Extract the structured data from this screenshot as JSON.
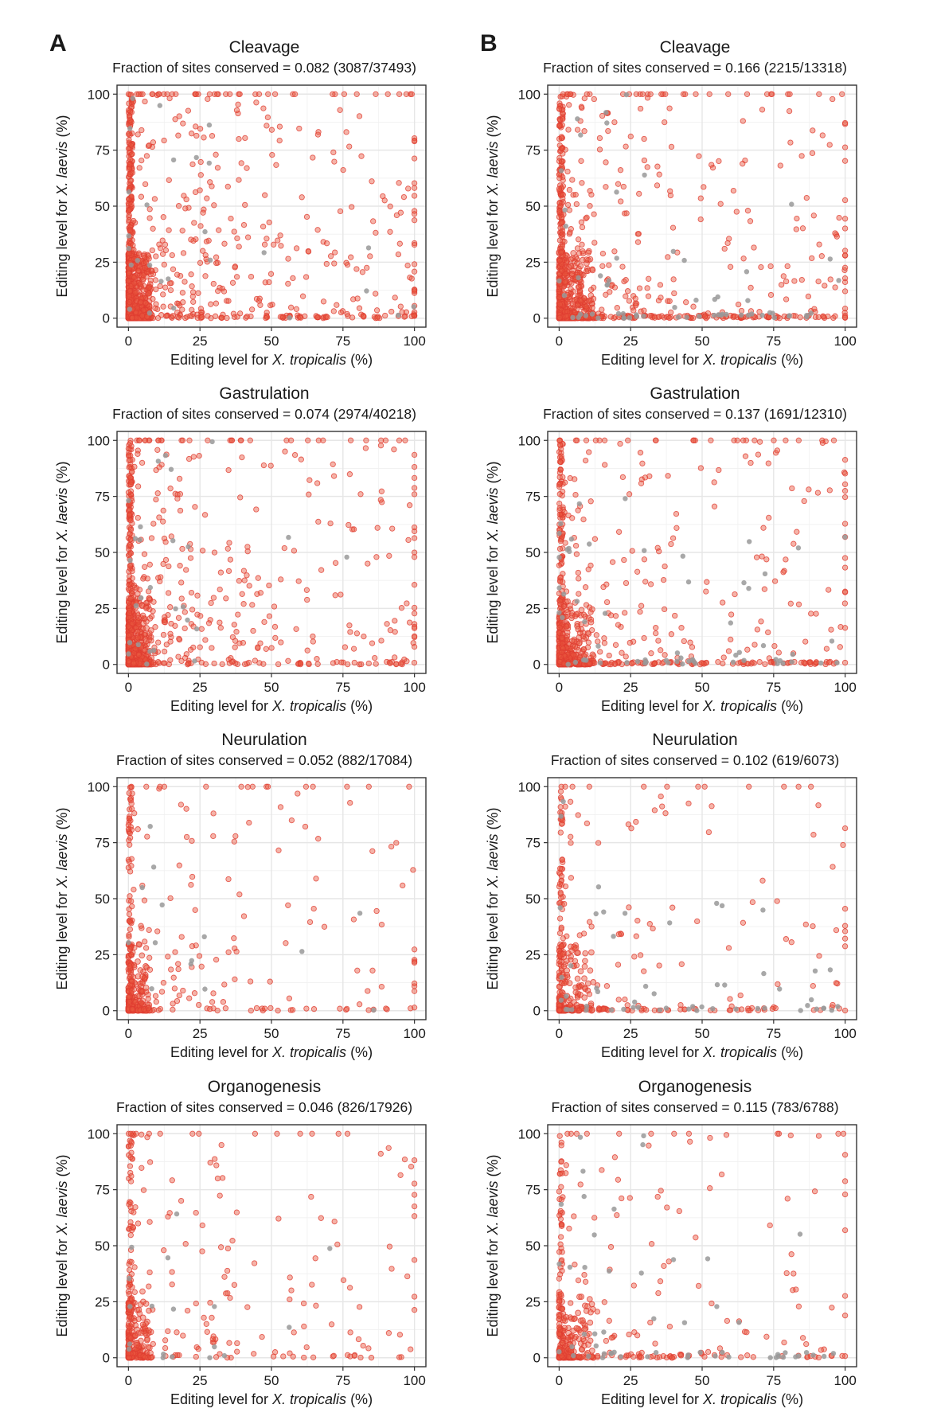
{
  "panels": [
    {
      "letter": "A"
    },
    {
      "letter": "B"
    }
  ],
  "colors": {
    "conserved": "#e8563f",
    "not_conserved": "#999999",
    "dense": "#e03c31",
    "grid": "#e6e6e6",
    "frame": "#333333"
  },
  "chart_data": [
    {
      "id": "A1",
      "panel": "A",
      "type": "scatter",
      "title": "Cleavage",
      "subtitle": "Fraction of sites conserved = 0.082 (3087/37493)",
      "fraction": 0.082,
      "conserved": 3087,
      "total": 37493,
      "xlabel_prefix": "Editing level for ",
      "xlabel_species": "X. tropicalis",
      "xlabel_suffix": " (%)",
      "ylabel_prefix": "Editing level for ",
      "ylabel_species": "X. laevis",
      "ylabel_suffix": " (%)",
      "xlim": [
        0,
        100
      ],
      "ylim": [
        0,
        100
      ],
      "xticks": [
        0,
        25,
        50,
        75,
        100
      ],
      "yticks": [
        0,
        25,
        50,
        75,
        100
      ],
      "grid": true,
      "series": [
        {
          "name": "conserved",
          "density": 1.0,
          "color": "#e8563f"
        },
        {
          "name": "not conserved",
          "density": 0.15,
          "color": "#999999"
        }
      ]
    },
    {
      "id": "B1",
      "panel": "B",
      "type": "scatter",
      "title": "Cleavage",
      "subtitle": "Fraction of sites conserved = 0.166 (2215/13318)",
      "fraction": 0.166,
      "conserved": 2215,
      "total": 13318,
      "xlabel_prefix": "Editing level for ",
      "xlabel_species": "X. tropicalis",
      "xlabel_suffix": " (%)",
      "ylabel_prefix": "Editing level for ",
      "ylabel_species": "X. laevis",
      "ylabel_suffix": " (%)",
      "xlim": [
        0,
        100
      ],
      "ylim": [
        0,
        100
      ],
      "xticks": [
        0,
        25,
        50,
        75,
        100
      ],
      "yticks": [
        0,
        25,
        50,
        75,
        100
      ],
      "grid": true,
      "series": [
        {
          "name": "conserved",
          "density": 0.75,
          "color": "#e8563f"
        },
        {
          "name": "not conserved",
          "density": 0.35,
          "color": "#999999"
        }
      ]
    },
    {
      "id": "A2",
      "panel": "A",
      "type": "scatter",
      "title": "Gastrulation",
      "subtitle": "Fraction of sites conserved = 0.074 (2974/40218)",
      "fraction": 0.074,
      "conserved": 2974,
      "total": 40218,
      "xlabel_prefix": "Editing level for ",
      "xlabel_species": "X. tropicalis",
      "xlabel_suffix": " (%)",
      "ylabel_prefix": "Editing level for ",
      "ylabel_species": "X. laevis",
      "ylabel_suffix": " (%)",
      "xlim": [
        0,
        100
      ],
      "ylim": [
        0,
        100
      ],
      "xticks": [
        0,
        25,
        50,
        75,
        100
      ],
      "yticks": [
        0,
        25,
        50,
        75,
        100
      ],
      "grid": true,
      "series": [
        {
          "name": "conserved",
          "density": 0.8,
          "color": "#e8563f"
        },
        {
          "name": "not conserved",
          "density": 0.15,
          "color": "#999999"
        }
      ]
    },
    {
      "id": "B2",
      "panel": "B",
      "type": "scatter",
      "title": "Gastrulation",
      "subtitle": "Fraction of sites conserved = 0.137 (1691/12310)",
      "fraction": 0.137,
      "conserved": 1691,
      "total": 12310,
      "xlabel_prefix": "Editing level for ",
      "xlabel_species": "X. tropicalis",
      "xlabel_suffix": " (%)",
      "ylabel_prefix": "Editing level for ",
      "ylabel_species": "X. laevis",
      "ylabel_suffix": " (%)",
      "xlim": [
        0,
        100
      ],
      "ylim": [
        0,
        100
      ],
      "xticks": [
        0,
        25,
        50,
        75,
        100
      ],
      "yticks": [
        0,
        25,
        50,
        75,
        100
      ],
      "grid": true,
      "series": [
        {
          "name": "conserved",
          "density": 0.6,
          "color": "#e8563f"
        },
        {
          "name": "not conserved",
          "density": 0.35,
          "color": "#999999"
        }
      ]
    },
    {
      "id": "A3",
      "panel": "A",
      "type": "scatter",
      "title": "Neurulation",
      "subtitle": "Fraction of sites conserved = 0.052 (882/17084)",
      "fraction": 0.052,
      "conserved": 882,
      "total": 17084,
      "xlabel_prefix": "Editing level for ",
      "xlabel_species": "X. tropicalis",
      "xlabel_suffix": " (%)",
      "ylabel_prefix": "Editing level for ",
      "ylabel_species": "X. laevis",
      "ylabel_suffix": " (%)",
      "xlim": [
        0,
        100
      ],
      "ylim": [
        0,
        100
      ],
      "xticks": [
        0,
        25,
        50,
        75,
        100
      ],
      "yticks": [
        0,
        25,
        50,
        75,
        100
      ],
      "grid": true,
      "series": [
        {
          "name": "conserved",
          "density": 0.35,
          "color": "#e8563f"
        },
        {
          "name": "not conserved",
          "density": 0.08,
          "color": "#999999"
        }
      ]
    },
    {
      "id": "B3",
      "panel": "B",
      "type": "scatter",
      "title": "Neurulation",
      "subtitle": "Fraction of sites conserved = 0.102 (619/6073)",
      "fraction": 0.102,
      "conserved": 619,
      "total": 6073,
      "xlabel_prefix": "Editing level for ",
      "xlabel_species": "X. tropicalis",
      "xlabel_suffix": " (%)",
      "ylabel_prefix": "Editing level for ",
      "ylabel_species": "X. laevis",
      "ylabel_suffix": " (%)",
      "xlim": [
        0,
        100
      ],
      "ylim": [
        0,
        100
      ],
      "xticks": [
        0,
        25,
        50,
        75,
        100
      ],
      "yticks": [
        0,
        25,
        50,
        75,
        100
      ],
      "grid": true,
      "series": [
        {
          "name": "conserved",
          "density": 0.3,
          "color": "#e8563f"
        },
        {
          "name": "not conserved",
          "density": 0.3,
          "color": "#999999"
        }
      ]
    },
    {
      "id": "A4",
      "panel": "A",
      "type": "scatter",
      "title": "Organogenesis",
      "subtitle": "Fraction of sites conserved = 0.046 (826/17926)",
      "fraction": 0.046,
      "conserved": 826,
      "total": 17926,
      "xlabel_prefix": "Editing level for ",
      "xlabel_species": "X. tropicalis",
      "xlabel_suffix": " (%)",
      "ylabel_prefix": "Editing level for ",
      "ylabel_species": "X. laevis",
      "ylabel_suffix": " (%)",
      "xlim": [
        0,
        100
      ],
      "ylim": [
        0,
        100
      ],
      "xticks": [
        0,
        25,
        50,
        75,
        100
      ],
      "yticks": [
        0,
        25,
        50,
        75,
        100
      ],
      "grid": true,
      "series": [
        {
          "name": "conserved",
          "density": 0.35,
          "color": "#e8563f"
        },
        {
          "name": "not conserved",
          "density": 0.1,
          "color": "#999999"
        }
      ]
    },
    {
      "id": "B4",
      "panel": "B",
      "type": "scatter",
      "title": "Organogenesis",
      "subtitle": "Fraction of sites conserved = 0.115 (783/6788)",
      "fraction": 0.115,
      "conserved": 783,
      "total": 6788,
      "xlabel_prefix": "Editing level for ",
      "xlabel_species": "X. tropicalis",
      "xlabel_suffix": " (%)",
      "ylabel_prefix": "Editing level for ",
      "ylabel_species": "X. laevis",
      "ylabel_suffix": " (%)",
      "xlim": [
        0,
        100
      ],
      "ylim": [
        0,
        100
      ],
      "xticks": [
        0,
        25,
        50,
        75,
        100
      ],
      "yticks": [
        0,
        25,
        50,
        75,
        100
      ],
      "grid": true,
      "series": [
        {
          "name": "conserved",
          "density": 0.3,
          "color": "#e8563f"
        },
        {
          "name": "not conserved",
          "density": 0.3,
          "color": "#999999"
        }
      ]
    }
  ]
}
